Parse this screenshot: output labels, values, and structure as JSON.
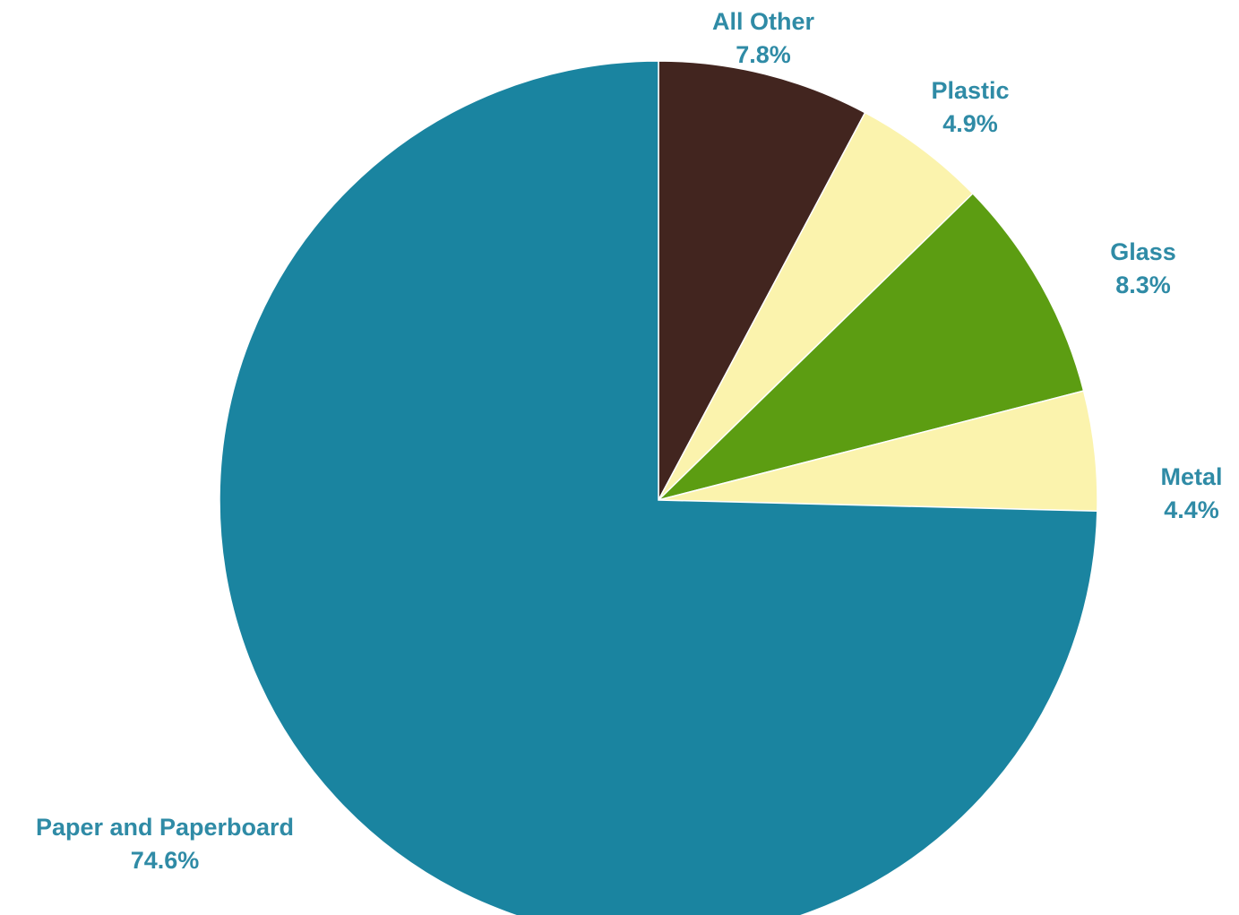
{
  "chart_data": {
    "type": "pie",
    "slices": [
      {
        "label": "All Other",
        "value": 7.8,
        "value_label": "7.8%",
        "color": "#42251f"
      },
      {
        "label": "Plastic",
        "value": 4.9,
        "value_label": "4.9%",
        "color": "#fbf3ad"
      },
      {
        "label": "Glass",
        "value": 8.3,
        "value_label": "8.3%",
        "color": "#5c9d12"
      },
      {
        "label": "Metal",
        "value": 4.4,
        "value_label": "4.4%",
        "color": "#fbf3ad"
      },
      {
        "label": "Paper and Paperboard",
        "value": 74.6,
        "value_label": "74.6%",
        "color": "#1a84a0"
      }
    ],
    "start_angle": "top, clockwise",
    "label_color": "#2f8ba6"
  }
}
